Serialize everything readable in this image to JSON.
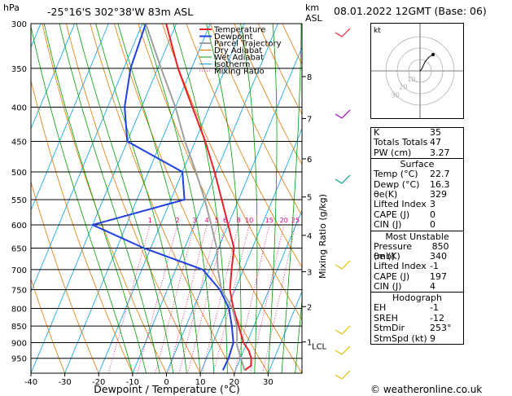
{
  "header": {
    "hpa_label": "hPa",
    "location": "-25°16'S  302°38'W  83m  ASL",
    "km_label": "km",
    "asl_label": "ASL",
    "date": "08.01.2022  12GMT  (Base: 06)"
  },
  "colors": {
    "temperature": "#e8202a",
    "dewpoint": "#2040e0",
    "parcel": "#a0a0a0",
    "dry_adiabat": "#e07800",
    "wet_adiabat": "#00a000",
    "isotherm": "#00a0e0",
    "mixing_ratio": "#e0007a"
  },
  "chart_data": {
    "type": "line",
    "title": "",
    "xlabel": "Dewpoint / Temperature (°C)",
    "ylabel": "Mixing Ratio (g/kg)",
    "x_ticks": [
      "-40",
      "-30",
      "-20",
      "-10",
      "0",
      "10",
      "20",
      "30"
    ],
    "xlim": [
      -40,
      40
    ],
    "pressure_levels": [
      "300",
      "350",
      "400",
      "450",
      "500",
      "550",
      "600",
      "650",
      "700",
      "750",
      "800",
      "850",
      "900",
      "950"
    ],
    "ylim_hpa": [
      1000,
      300
    ],
    "km_ticks": [
      "1",
      "2",
      "3",
      "4",
      "5",
      "6",
      "7",
      "8"
    ],
    "km_pressures": [
      898,
      795,
      705,
      622,
      545,
      478,
      416,
      360
    ],
    "lcl_label": "LCL",
    "lcl_pressure": 910,
    "mixing_ratio_labels": [
      "1",
      "2",
      "3",
      "4",
      "5",
      "6",
      "8",
      "10",
      "15",
      "20",
      "25"
    ],
    "legend": {
      "placement": "top-left",
      "entries": [
        "Temperature",
        "Dewpoint",
        "Parcel Trajectory",
        "Dry Adiabat",
        "Wet Adiabat",
        "Isotherm",
        "Mixing Ratio"
      ]
    },
    "series": [
      {
        "name": "Temperature",
        "points": [
          [
            990,
            22.7
          ],
          [
            975,
            24
          ],
          [
            950,
            23.2
          ],
          [
            925,
            21.5
          ],
          [
            900,
            19
          ],
          [
            850,
            15.5
          ],
          [
            800,
            11.8
          ],
          [
            750,
            8.5
          ],
          [
            700,
            6.5
          ],
          [
            650,
            4.6
          ],
          [
            600,
            0
          ],
          [
            550,
            -5
          ],
          [
            500,
            -10.5
          ],
          [
            450,
            -17
          ],
          [
            400,
            -25
          ],
          [
            350,
            -34
          ],
          [
            300,
            -43
          ]
        ]
      },
      {
        "name": "Dewpoint",
        "points": [
          [
            990,
            16.3
          ],
          [
            950,
            16.5
          ],
          [
            900,
            16
          ],
          [
            850,
            13.5
          ],
          [
            800,
            10.5
          ],
          [
            750,
            5.5
          ],
          [
            700,
            -2
          ],
          [
            650,
            -22
          ],
          [
            600,
            -40
          ],
          [
            550,
            -16
          ],
          [
            500,
            -20
          ],
          [
            450,
            -40
          ],
          [
            400,
            -45
          ],
          [
            350,
            -48
          ],
          [
            300,
            -49
          ]
        ]
      },
      {
        "name": "Parcel Trajectory",
        "points": [
          [
            990,
            22.7
          ],
          [
            910,
            17.5
          ],
          [
            850,
            15
          ],
          [
            800,
            11.5
          ],
          [
            750,
            6
          ],
          [
            700,
            2.5
          ],
          [
            650,
            -0.5
          ],
          [
            600,
            -5
          ],
          [
            550,
            -10
          ],
          [
            500,
            -16
          ],
          [
            450,
            -23
          ],
          [
            400,
            -30
          ],
          [
            350,
            -39
          ],
          [
            300,
            -49
          ]
        ]
      }
    ]
  },
  "hodograph": {
    "unit_label": "kt",
    "ring_labels": [
      "10",
      "20",
      "30"
    ],
    "trace": [
      [
        0,
        0
      ],
      [
        2,
        2
      ],
      [
        6,
        11
      ],
      [
        11,
        17
      ],
      [
        16,
        20
      ]
    ]
  },
  "indices": {
    "top": [
      {
        "label": "K",
        "value": "35"
      },
      {
        "label": "Totals Totals",
        "value": "47"
      },
      {
        "label": "PW (cm)",
        "value": "3.27"
      }
    ],
    "surface": {
      "title": "Surface",
      "rows": [
        {
          "label": "Temp (°C)",
          "value": "22.7"
        },
        {
          "label": "Dewp (°C)",
          "value": "16.3"
        },
        {
          "label": "θe(K)",
          "value": "329"
        },
        {
          "label": "Lifted Index",
          "value": "3"
        },
        {
          "label": "CAPE (J)",
          "value": "0"
        },
        {
          "label": "CIN (J)",
          "value": "0"
        }
      ]
    },
    "most_unstable": {
      "title": "Most Unstable",
      "rows": [
        {
          "label": "Pressure (mb)",
          "value": "850"
        },
        {
          "label": "θe (K)",
          "value": "340"
        },
        {
          "label": "Lifted Index",
          "value": "-1"
        },
        {
          "label": "CAPE (J)",
          "value": "197"
        },
        {
          "label": "CIN (J)",
          "value": "4"
        }
      ]
    },
    "hodograph": {
      "title": "Hodograph",
      "rows": [
        {
          "label": "EH",
          "value": "-1"
        },
        {
          "label": "SREH",
          "value": "-12"
        },
        {
          "label": "StmDir",
          "value": "253°"
        },
        {
          "label": "StmSpd (kt)",
          "value": "9"
        }
      ]
    }
  },
  "credit": "© weatheronline.co.uk"
}
